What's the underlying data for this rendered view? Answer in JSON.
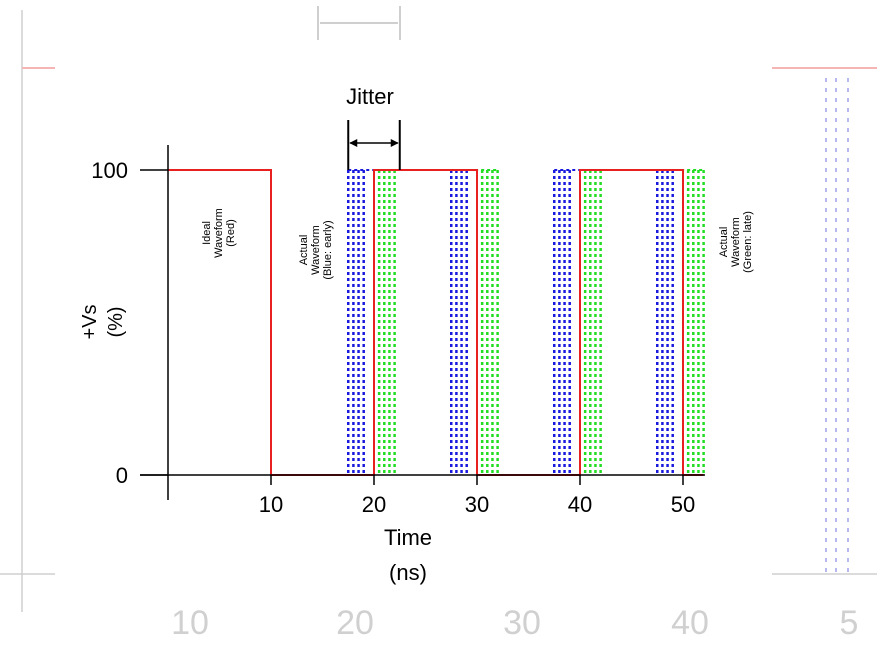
{
  "chart_data": {
    "type": "line",
    "title": "",
    "xlabel": "Time",
    "xunit": "(ns)",
    "ylabel": "+Vs",
    "yunit": "(%)",
    "xlim": [
      0,
      52
    ],
    "ylim": [
      0,
      100
    ],
    "x_ticks": [
      10,
      20,
      30,
      40,
      50
    ],
    "y_ticks": [
      0,
      100
    ],
    "jitter_label": "Jitter",
    "jitter_range": [
      17.5,
      22.5
    ],
    "series": [
      {
        "name": "Ideal Waveform (Red)",
        "label_lines": [
          "Ideal",
          "Waveform",
          "(Red)"
        ],
        "color": "#e82020",
        "style": "solid",
        "x": [
          0,
          10,
          10,
          20,
          20,
          30,
          30,
          40,
          40,
          50,
          50,
          52
        ],
        "y": [
          100,
          100,
          0,
          0,
          100,
          100,
          0,
          0,
          100,
          100,
          0,
          0
        ]
      },
      {
        "name": "Actual Waveform (Blue: early)",
        "label_lines": [
          "Actual",
          "Waveform",
          "(Blue: early)"
        ],
        "color": "#1a1adf",
        "style": "dotted",
        "edges": [
          17.5,
          18,
          18.5,
          19,
          27.5,
          28,
          28.5,
          29,
          37.5,
          38,
          38.5,
          39,
          47.5,
          48,
          48.5,
          49
        ]
      },
      {
        "name": "Actual Waveform (Green: late)",
        "label_lines": [
          "Actual",
          "Waveform",
          "(Green: late)"
        ],
        "color": "#22dd22",
        "style": "dotted",
        "edges": [
          20.5,
          21,
          21.5,
          22,
          30.5,
          31,
          31.5,
          32,
          40.5,
          41,
          41.5,
          42,
          50.5,
          51,
          51.5,
          52
        ]
      }
    ]
  },
  "background": {
    "ghost_ticks": [
      "10",
      "20",
      "30",
      "40",
      "5"
    ]
  }
}
